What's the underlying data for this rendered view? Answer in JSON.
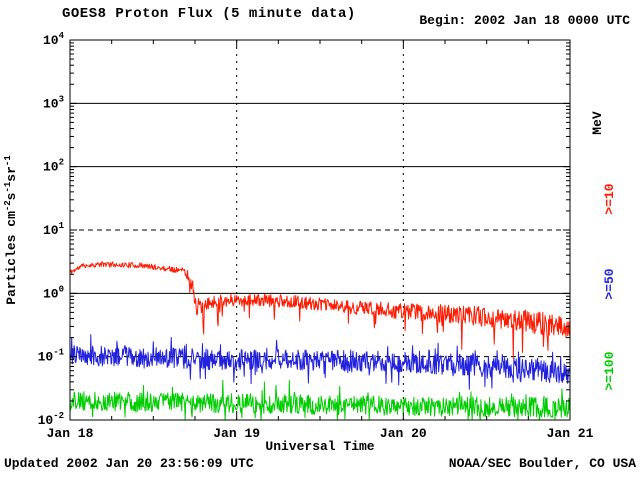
{
  "header": {
    "title": "GOES8 Proton Flux (5 minute data)",
    "begin_label": "Begin: 2002 Jan 18 0000 UTC"
  },
  "footer": {
    "updated": "Updated 2002 Jan 20 23:56:09 UTC",
    "credit": "NOAA/SEC Boulder, CO USA"
  },
  "chart_data": {
    "type": "line",
    "title": "GOES8 Proton Flux (5 minute data)",
    "xlabel": "Universal Time",
    "ylabel_segments": [
      [
        "t",
        "Particles cm"
      ],
      [
        "sup",
        "-2"
      ],
      [
        "t",
        "s"
      ],
      [
        "sup",
        "-1"
      ],
      [
        "t",
        "sr"
      ],
      [
        "sup",
        "-1"
      ]
    ],
    "x_axis": {
      "tick_labels": [
        "Jan 18",
        "Jan 19",
        "Jan 20",
        "Jan 21"
      ],
      "range_days": [
        0,
        3
      ],
      "minor_tick_hours": 6
    },
    "y_axis": {
      "scale": "log",
      "exponents": [
        4,
        3,
        2,
        1,
        0,
        -1,
        -2
      ],
      "range_log10": [
        -2,
        4
      ]
    },
    "grid": {
      "solid_h_log10": [
        3,
        2,
        0
      ],
      "dashed_h_log10": [
        1,
        -1
      ],
      "dashed_v_days": [
        1,
        2
      ]
    },
    "right_axis": {
      "title": "MeV",
      "labels": [
        {
          "label": ">=10",
          "color": "#ff1a00"
        },
        {
          "label": ">=50",
          "color": "#2222dd"
        },
        {
          "label": ">=100",
          "color": "#00cc00"
        }
      ]
    },
    "sample_interval_minutes": 5,
    "legend_position": "right",
    "series": [
      {
        "name": ">=10 MeV",
        "color": "#ff1a00",
        "seed": 11,
        "spike_prob": 0.05,
        "spike_dir": "down",
        "base_log10": [
          [
            0,
            0.33
          ],
          [
            0.08,
            0.44
          ],
          [
            0.2,
            0.46
          ],
          [
            0.42,
            0.44
          ],
          [
            0.55,
            0.4
          ],
          [
            0.68,
            0.36
          ],
          [
            0.72,
            0.25
          ],
          [
            0.76,
            -0.2
          ],
          [
            0.8,
            -0.25
          ],
          [
            0.86,
            -0.12
          ],
          [
            1,
            -0.1
          ],
          [
            1.3,
            -0.12
          ],
          [
            1.6,
            -0.2
          ],
          [
            2,
            -0.28
          ],
          [
            2.4,
            -0.35
          ],
          [
            2.7,
            -0.42
          ],
          [
            3,
            -0.55
          ]
        ],
        "noise_log10": [
          [
            0,
            0.04
          ],
          [
            0.68,
            0.045
          ],
          [
            0.73,
            0.15
          ],
          [
            0.9,
            0.1
          ],
          [
            1.5,
            0.1
          ],
          [
            2,
            0.13
          ],
          [
            2.5,
            0.16
          ],
          [
            3,
            0.2
          ]
        ],
        "spike_log10": [
          [
            0,
            0
          ],
          [
            0.7,
            0
          ],
          [
            0.74,
            0.6
          ],
          [
            0.95,
            0.3
          ],
          [
            1.8,
            0.3
          ],
          [
            2.3,
            0.45
          ],
          [
            3,
            0.55
          ]
        ]
      },
      {
        "name": ">=50 MeV",
        "color": "#2222dd",
        "seed": 23,
        "spike_prob": 0.1,
        "spike_dir": "both",
        "base_log10": [
          [
            0,
            -0.98
          ],
          [
            0.4,
            -1.0
          ],
          [
            0.9,
            -1.05
          ],
          [
            1.4,
            -1.05
          ],
          [
            1.9,
            -1.08
          ],
          [
            2.3,
            -1.12
          ],
          [
            2.7,
            -1.18
          ],
          [
            3,
            -1.28
          ]
        ],
        "noise_log10": [
          [
            0,
            0.16
          ],
          [
            3,
            0.17
          ]
        ],
        "spike_log10": [
          [
            0,
            0.22
          ],
          [
            3,
            0.25
          ]
        ]
      },
      {
        "name": ">=100 MeV",
        "color": "#00cc00",
        "seed": 37,
        "spike_prob": 0.1,
        "spike_dir": "both",
        "base_log10": [
          [
            0,
            -1.7
          ],
          [
            0.6,
            -1.72
          ],
          [
            1.2,
            -1.75
          ],
          [
            2,
            -1.78
          ],
          [
            3,
            -1.8
          ]
        ],
        "noise_log10": [
          [
            0,
            0.15
          ],
          [
            3,
            0.16
          ]
        ],
        "spike_log10": [
          [
            0,
            0.22
          ],
          [
            3,
            0.25
          ]
        ]
      }
    ]
  }
}
